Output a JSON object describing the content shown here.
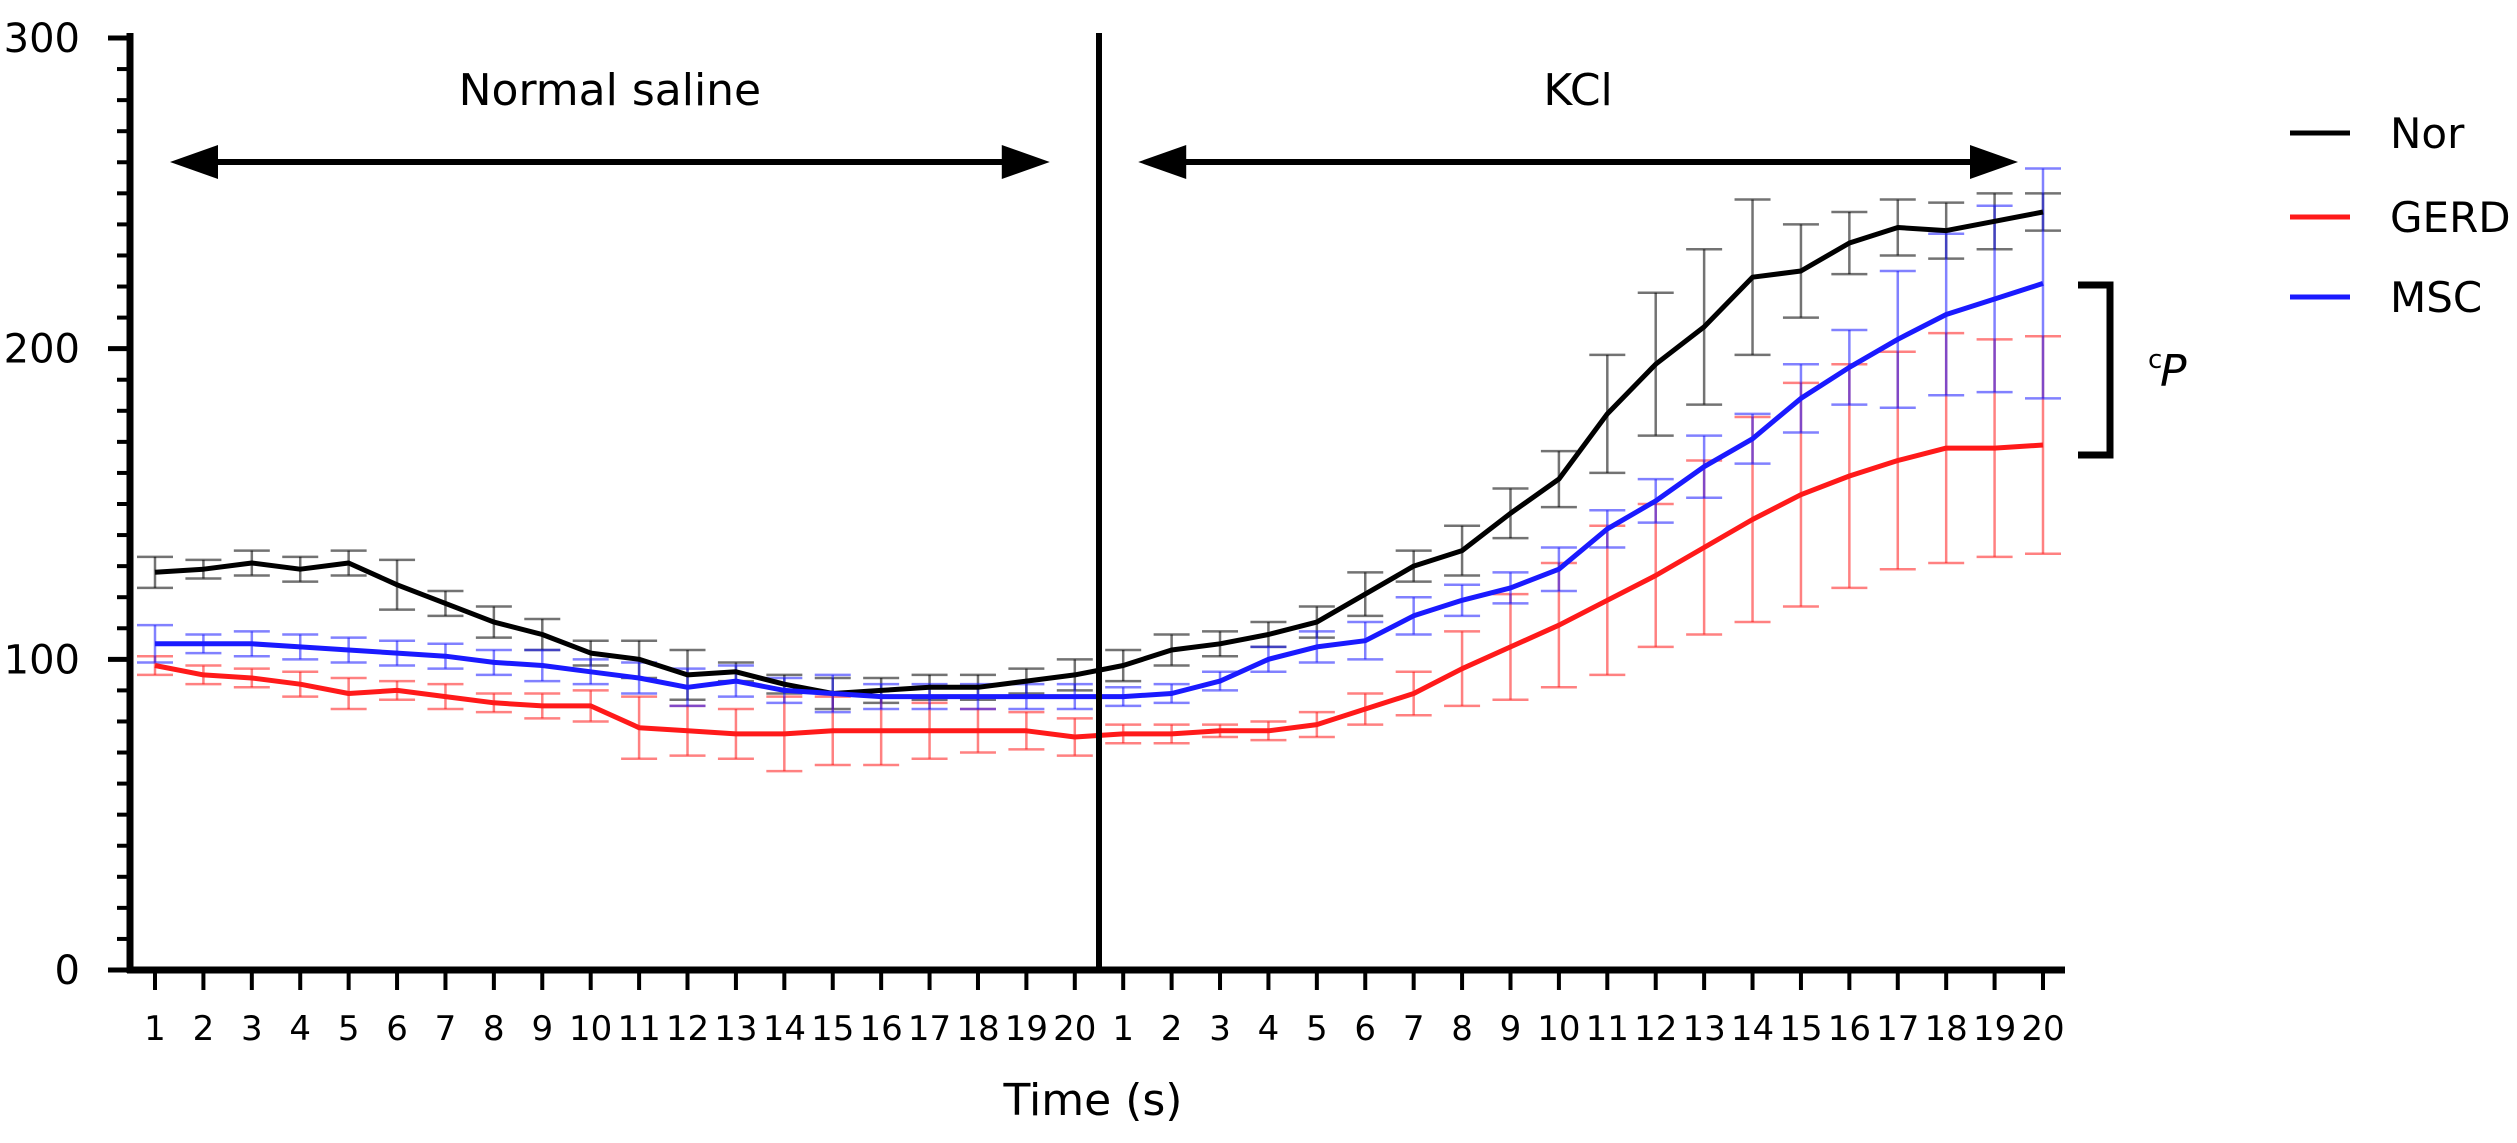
{
  "chart_data": {
    "type": "line",
    "xlabel": "Time (s)",
    "ylabel": "",
    "ylim": [
      0,
      300
    ],
    "y_ticks": [
      "0",
      "100",
      "200",
      "300"
    ],
    "x_tick_labels": [
      "1",
      "2",
      "3",
      "4",
      "5",
      "6",
      "7",
      "8",
      "9",
      "10",
      "11",
      "12",
      "13",
      "14",
      "15",
      "16",
      "17",
      "18",
      "19",
      "20",
      "1",
      "2",
      "3",
      "4",
      "5",
      "6",
      "7",
      "8",
      "9",
      "10",
      "11",
      "12",
      "13",
      "14",
      "15",
      "16",
      "17",
      "18",
      "19",
      "20"
    ],
    "sections": [
      {
        "label": "Normal saline",
        "start_index": 0,
        "end_index": 19
      },
      {
        "label": "KCl",
        "start_index": 20,
        "end_index": 39
      }
    ],
    "legend_position": "right",
    "grid": false,
    "series": [
      {
        "name": "Nor",
        "color": "#000000",
        "values": [
          128,
          129,
          131,
          129,
          131,
          124,
          118,
          112,
          108,
          102,
          100,
          95,
          96,
          92,
          89,
          90,
          91,
          91,
          93,
          95,
          98,
          103,
          105,
          108,
          112,
          121,
          130,
          135,
          147,
          158,
          179,
          195,
          207,
          223,
          225,
          234,
          239,
          238,
          241,
          244
        ],
        "errors": [
          5,
          3,
          4,
          4,
          4,
          8,
          4,
          5,
          5,
          4,
          6,
          8,
          3,
          3,
          5,
          4,
          4,
          4,
          4,
          5,
          5,
          5,
          4,
          4,
          5,
          7,
          5,
          8,
          8,
          9,
          19,
          23,
          25,
          25,
          15,
          10,
          9,
          9,
          9,
          6
        ]
      },
      {
        "name": "GERD",
        "color": "#ff1a1a",
        "values": [
          98,
          95,
          94,
          92,
          89,
          90,
          88,
          86,
          85,
          85,
          78,
          77,
          76,
          76,
          77,
          77,
          77,
          77,
          77,
          75,
          76,
          76,
          77,
          77,
          79,
          84,
          89,
          97,
          104,
          111,
          119,
          127,
          136,
          145,
          153,
          159,
          164,
          168,
          168,
          169
        ],
        "errors": [
          3,
          3,
          3,
          4,
          5,
          3,
          4,
          3,
          4,
          5,
          10,
          8,
          8,
          12,
          11,
          11,
          9,
          7,
          6,
          6,
          3,
          3,
          2,
          3,
          4,
          5,
          7,
          12,
          17,
          20,
          24,
          23,
          28,
          33,
          36,
          36,
          35,
          37,
          35,
          35
        ]
      },
      {
        "name": "MSC",
        "color": "#1a1aff",
        "values": [
          105,
          105,
          105,
          104,
          103,
          102,
          101,
          99,
          98,
          96,
          94,
          91,
          93,
          90,
          89,
          88,
          88,
          88,
          88,
          88,
          88,
          89,
          93,
          100,
          104,
          106,
          114,
          119,
          123,
          129,
          142,
          151,
          162,
          171,
          184,
          194,
          203,
          211,
          216,
          221
        ],
        "errors": [
          6,
          3,
          4,
          4,
          4,
          4,
          4,
          4,
          5,
          4,
          5,
          6,
          5,
          4,
          6,
          4,
          4,
          4,
          4,
          4,
          3,
          3,
          3,
          4,
          5,
          6,
          6,
          5,
          5,
          7,
          6,
          7,
          10,
          8,
          11,
          12,
          22,
          26,
          30,
          37
        ]
      }
    ],
    "annotations": {
      "significance": {
        "superscript": "c",
        "label": "P",
        "span": [
          "Nor",
          "GERD"
        ]
      }
    }
  }
}
